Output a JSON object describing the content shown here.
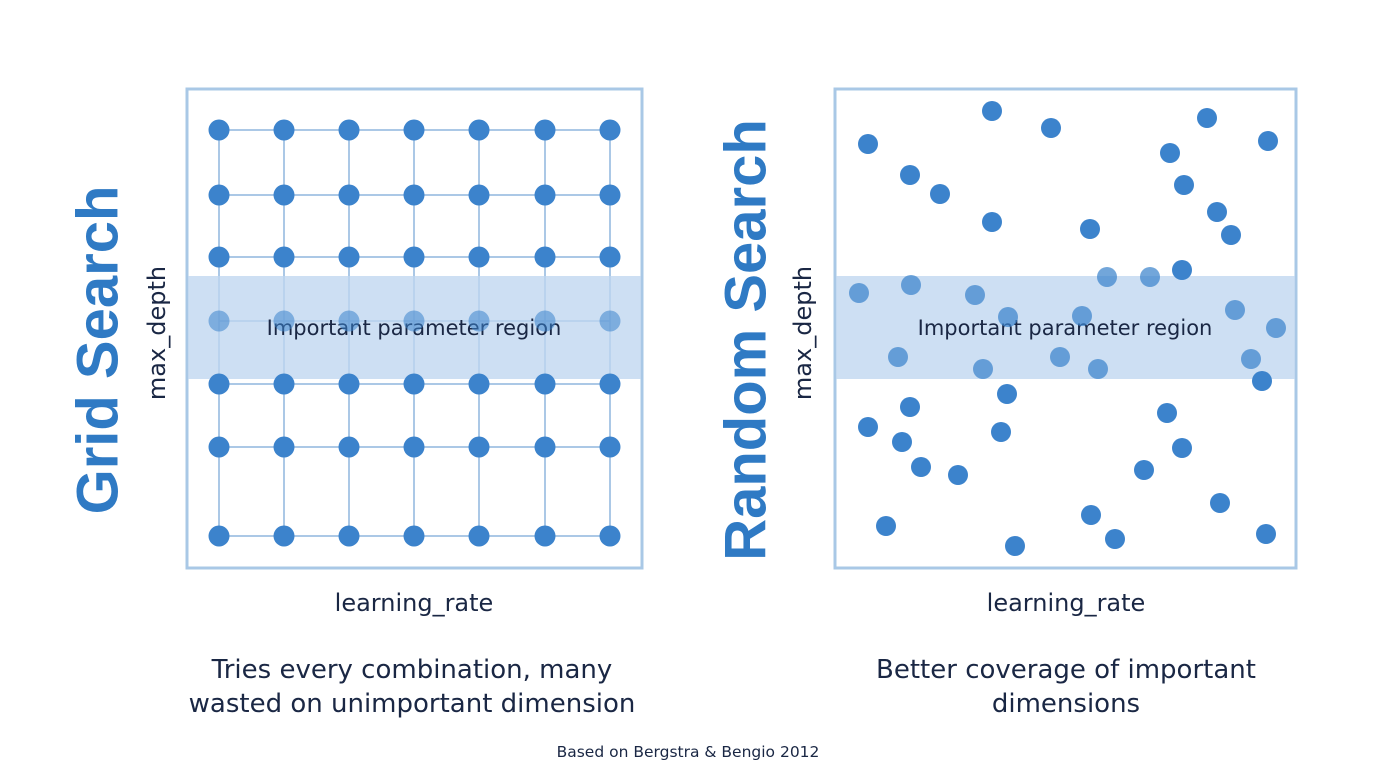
{
  "footnote": "Based on Bergstra & Bengio 2012",
  "panels": {
    "grid": {
      "title": "Grid Search",
      "xlabel": "learning_rate",
      "ylabel": "max_depth",
      "region_label": "Important parameter region",
      "caption_lines": [
        "Tries every combination, many",
        "wasted on unimportant dimension"
      ]
    },
    "random": {
      "title": "Random Search",
      "xlabel": "learning_rate",
      "ylabel": "max_depth",
      "region_label": "Important parameter region",
      "caption_lines": [
        "Better coverage of important",
        "dimensions"
      ]
    }
  },
  "colors": {
    "accent": "#2f7ac4",
    "dot": "#3c83cc",
    "band": "#bfd6ef",
    "frame": "#a9c8e6",
    "text": "#1a2744"
  }
}
